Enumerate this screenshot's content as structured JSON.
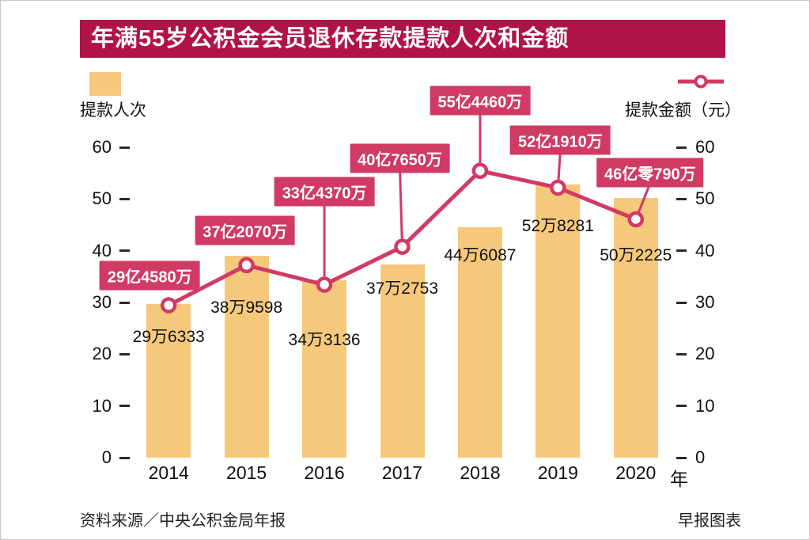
{
  "title": "年满55岁公积金会员退休存款提款人次和金额",
  "legend": {
    "bar_label": "提款人次",
    "line_label": "提款金额（元）"
  },
  "axis": {
    "x_unit": "年"
  },
  "footer": {
    "source": "资料来源／中央公积金局年报",
    "credit": "早报图表"
  },
  "colors": {
    "banner": "#b01446",
    "bar": "#f6c87c",
    "line": "#d03a64",
    "annotation_bg": "#d03a64",
    "annotation_text": "#ffffff"
  },
  "chart_data": {
    "type": "bar+line",
    "title": "年满55岁公积金会员退休存款提款人次和金额",
    "categories": [
      "2014",
      "2015",
      "2016",
      "2017",
      "2018",
      "2019",
      "2020"
    ],
    "x_axis_suffix": "年",
    "y_ticks": [
      0,
      10,
      20,
      30,
      40,
      50,
      60
    ],
    "ylim": [
      0,
      60
    ],
    "grid": false,
    "legend_position": "top",
    "series": [
      {
        "name": "提款人次",
        "type": "bar",
        "unit": "万人次",
        "values": [
          29.6333,
          38.9598,
          34.3136,
          37.2753,
          44.6087,
          52.8281,
          50.2225
        ],
        "data_labels": [
          "29万6333",
          "38万9598",
          "34万3136",
          "37万2753",
          "44万6087",
          "52万8281",
          "50万2225"
        ]
      },
      {
        "name": "提款金额（元）",
        "type": "line",
        "unit": "亿元",
        "values": [
          29.458,
          37.207,
          33.437,
          40.765,
          55.446,
          52.191,
          46.079
        ],
        "data_labels": [
          "29亿4580万",
          "37亿2070万",
          "33亿4370万",
          "40亿7650万",
          "55亿4460万",
          "52亿1910万",
          "46亿零790万"
        ]
      }
    ]
  }
}
